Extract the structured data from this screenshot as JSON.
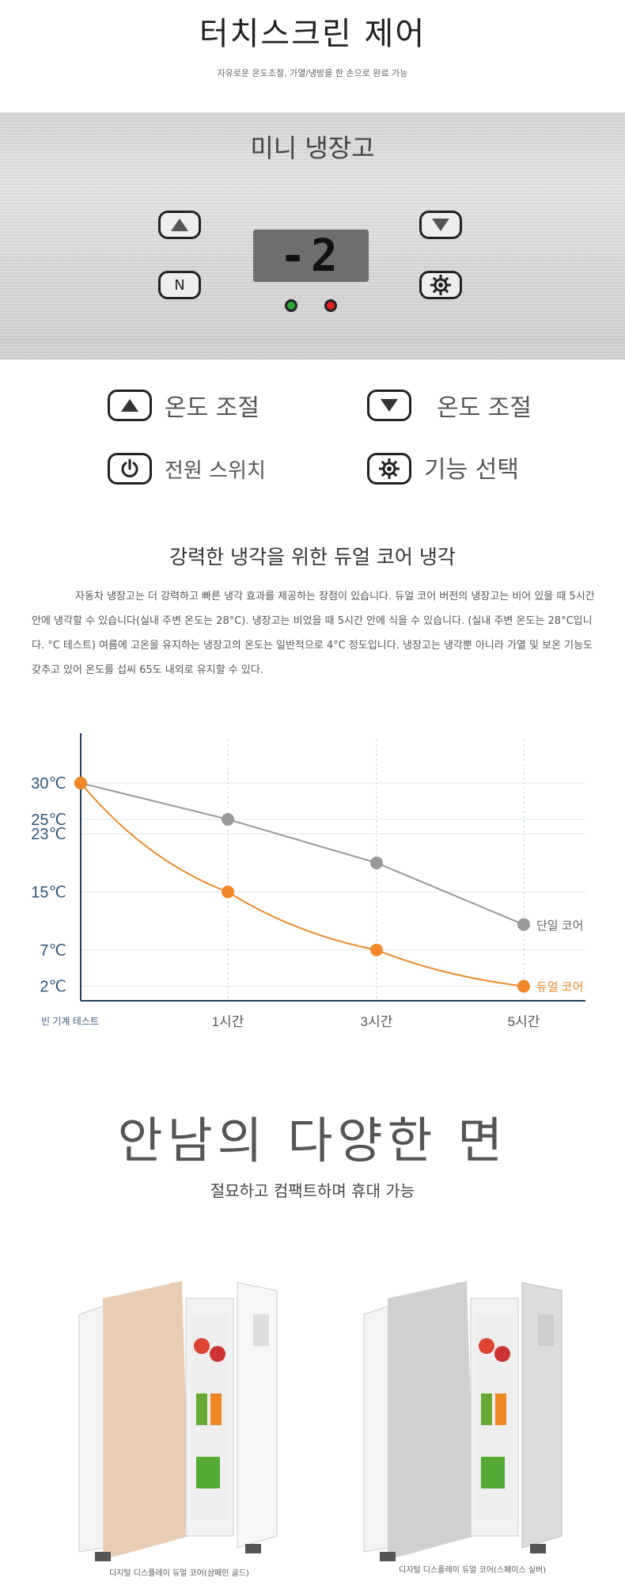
{
  "header": {
    "title": "터치스크린 제어",
    "subtitle": "자유로운 온도조절, 가열/냉방을 한 손으로 완료 가능"
  },
  "panel": {
    "title": "미니 냉장고",
    "display_value": "-2",
    "n_button_label": "N"
  },
  "legend": {
    "up_label": "온도 조절",
    "down_label": "온도 조절",
    "power_label": "전원 스위치",
    "function_label": "기능 선택"
  },
  "cooling": {
    "heading": "강력한 냉각을 위한 듀얼 코어 냉각",
    "paragraph": "자동차 냉장고는 더 강력하고 빠른 냉각 효과를 제공하는 장점이 있습니다. 듀얼 코어 버전의 냉장고는 비어 있을 때 5시간 안에 냉각할 수 있습니다(실내 주변 온도는 28°C). 냉장고는 비었을 때 5시간 안에 식을 수 있습니다. (실내 주변 온도는 28°C입니다. °C 테스트) 여름에 고온을 유지하는 냉장고의 온도는 일반적으로 4°C 정도입니다. 냉장고는 냉각뿐 아니라 가열 및 보온 기능도 갖추고 있어 온도를 섭씨 65도 내외로 유지할 수 있다."
  },
  "chart_data": {
    "type": "line",
    "title": "",
    "xlabel": "빈 기계 테스트",
    "ylabel": "",
    "x": [
      0,
      1,
      3,
      5
    ],
    "x_tick_labels": [
      "1시간",
      "3시간",
      "5시간"
    ],
    "y_tick_labels": [
      "30℃",
      "25℃",
      "23℃",
      "15℃",
      "7℃",
      "2℃"
    ],
    "y_ticks": [
      30,
      25,
      23,
      15,
      7,
      2
    ],
    "ylim": [
      0,
      36
    ],
    "series": [
      {
        "name": "단일 코어",
        "color": "#999999",
        "values": [
          30,
          25,
          19,
          10.5
        ]
      },
      {
        "name": "듀얼 코어",
        "color": "#f0882a",
        "values": [
          30,
          15,
          7,
          2
        ]
      }
    ]
  },
  "variety": {
    "heading": "안남의 다양한 면",
    "tagline": "절묘하고 컴팩트하며 휴대 가능"
  },
  "products": [
    {
      "caption": "디지털 디스플레이 듀얼 코어(샴페인 골드)",
      "color": "#e8cdb4"
    },
    {
      "caption": "디지털 디스플레이 듀얼 코어(스페이스 실버)",
      "color": "#d0d0d2"
    }
  ]
}
